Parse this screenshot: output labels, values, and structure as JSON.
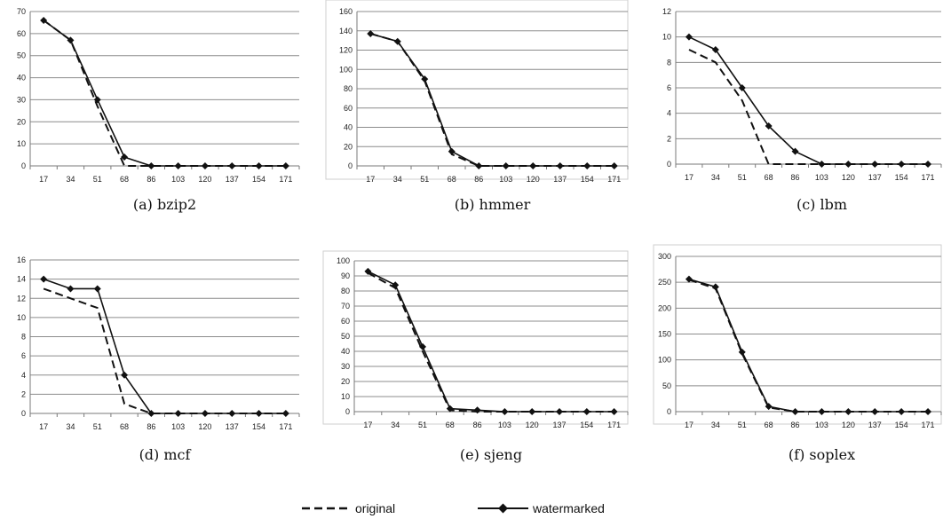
{
  "chart_data": [
    {
      "type": "line",
      "caption": "(a) bzip2",
      "x": [
        "17",
        "34",
        "51",
        "68",
        "86",
        "103",
        "120",
        "137",
        "154",
        "171"
      ],
      "ylim": [
        0,
        70
      ],
      "yticks": [
        0,
        10,
        20,
        30,
        40,
        50,
        60,
        70
      ],
      "grid": "horizontal",
      "series": [
        {
          "name": "original",
          "style": "dashed",
          "values": [
            66,
            57,
            27,
            0,
            0,
            0,
            0,
            0,
            0,
            0
          ]
        },
        {
          "name": "watermarked",
          "style": "solid-diamond",
          "values": [
            66,
            57,
            30,
            4,
            0,
            0,
            0,
            0,
            0,
            0
          ]
        }
      ]
    },
    {
      "type": "line",
      "caption": "(b) hmmer",
      "x": [
        "17",
        "34",
        "51",
        "68",
        "86",
        "103",
        "120",
        "137",
        "154",
        "171"
      ],
      "ylim": [
        0,
        160
      ],
      "yticks": [
        0,
        20,
        40,
        60,
        80,
        100,
        120,
        140,
        160
      ],
      "grid": "horizontal",
      "series": [
        {
          "name": "original",
          "style": "dashed",
          "values": [
            137,
            129,
            88,
            12,
            0,
            0,
            0,
            0,
            0,
            0
          ]
        },
        {
          "name": "watermarked",
          "style": "solid-diamond",
          "values": [
            137,
            129,
            90,
            15,
            0,
            0,
            0,
            0,
            0,
            0
          ]
        }
      ]
    },
    {
      "type": "line",
      "caption": "(c) lbm",
      "x": [
        "17",
        "34",
        "51",
        "68",
        "86",
        "103",
        "120",
        "137",
        "154",
        "171"
      ],
      "ylim": [
        0,
        12
      ],
      "yticks": [
        0,
        2,
        4,
        6,
        8,
        10,
        12
      ],
      "grid": "horizontal",
      "series": [
        {
          "name": "original",
          "style": "dashed",
          "values": [
            9,
            8,
            5,
            0,
            0,
            0,
            0,
            0,
            0,
            0
          ]
        },
        {
          "name": "watermarked",
          "style": "solid-diamond",
          "values": [
            10,
            9,
            6,
            3,
            1,
            0,
            0,
            0,
            0,
            0
          ]
        }
      ]
    },
    {
      "type": "line",
      "caption": "(d) mcf",
      "x": [
        "17",
        "34",
        "51",
        "68",
        "86",
        "103",
        "120",
        "137",
        "154",
        "171"
      ],
      "ylim": [
        0,
        16
      ],
      "yticks": [
        0,
        2,
        4,
        6,
        8,
        10,
        12,
        14,
        16
      ],
      "grid": "horizontal",
      "series": [
        {
          "name": "original",
          "style": "dashed",
          "values": [
            13,
            12,
            11,
            1,
            0,
            0,
            0,
            0,
            0,
            0
          ]
        },
        {
          "name": "watermarked",
          "style": "solid-diamond",
          "values": [
            14,
            13,
            13,
            4,
            0,
            0,
            0,
            0,
            0,
            0
          ]
        }
      ]
    },
    {
      "type": "line",
      "caption": "(e) sjeng",
      "x": [
        "17",
        "34",
        "51",
        "68",
        "86",
        "103",
        "120",
        "137",
        "154",
        "171"
      ],
      "ylim": [
        0,
        100
      ],
      "yticks": [
        0,
        10,
        20,
        30,
        40,
        50,
        60,
        70,
        80,
        90,
        100
      ],
      "grid": "horizontal",
      "series": [
        {
          "name": "original",
          "style": "dashed",
          "values": [
            92,
            82,
            40,
            1,
            0,
            0,
            0,
            0,
            0,
            0
          ]
        },
        {
          "name": "watermarked",
          "style": "solid-diamond",
          "values": [
            93,
            84,
            43,
            2,
            1,
            0,
            0,
            0,
            0,
            0
          ]
        }
      ]
    },
    {
      "type": "line",
      "caption": "(f) soplex",
      "x": [
        "17",
        "34",
        "51",
        "68",
        "86",
        "103",
        "120",
        "137",
        "154",
        "171"
      ],
      "ylim": [
        0,
        300
      ],
      "yticks": [
        0,
        50,
        100,
        150,
        200,
        250,
        300
      ],
      "grid": "horizontal",
      "series": [
        {
          "name": "original",
          "style": "dashed",
          "values": [
            255,
            238,
            112,
            8,
            0,
            0,
            0,
            0,
            0,
            0
          ]
        },
        {
          "name": "watermarked",
          "style": "solid-diamond",
          "values": [
            256,
            241,
            115,
            10,
            0,
            0,
            0,
            0,
            0,
            0
          ]
        }
      ]
    }
  ],
  "legend": {
    "placement": "bottom-center",
    "items": [
      {
        "label": "original",
        "style": "dashed"
      },
      {
        "label": "watermarked",
        "style": "solid-diamond"
      }
    ]
  }
}
